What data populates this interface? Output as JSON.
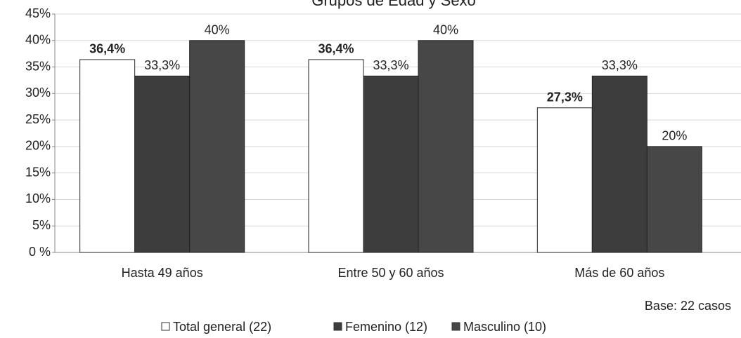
{
  "chart_data": {
    "type": "bar",
    "title": "Grupos de Edad y Sexo",
    "categories": [
      "Hasta 49 años",
      "Entre 50 y 60 años",
      "Más de 60 años"
    ],
    "series": [
      {
        "name": "Total general (22)",
        "color": "#ffffff",
        "values": [
          36.4,
          36.4,
          27.3
        ],
        "value_labels": [
          "36,4%",
          "36,4%",
          "27,3%"
        ]
      },
      {
        "name": "Femenino (12)",
        "color": "#3d3d3d",
        "values": [
          33.3,
          33.3,
          33.3
        ],
        "value_labels": [
          "33,3%",
          "33,3%",
          "33,3%"
        ]
      },
      {
        "name": "Masculino (10)",
        "color": "#474747",
        "values": [
          40,
          40,
          20
        ],
        "value_labels": [
          "40%",
          "40%",
          "20%"
        ]
      }
    ],
    "ylim": [
      0,
      45
    ],
    "yticks": [
      {
        "value": 0,
        "label": "0 %"
      },
      {
        "value": 5,
        "label": "5%"
      },
      {
        "value": 10,
        "label": "10%"
      },
      {
        "value": 15,
        "label": "15%"
      },
      {
        "value": 20,
        "label": "20%"
      },
      {
        "value": 25,
        "label": "25%"
      },
      {
        "value": 30,
        "label": "30%"
      },
      {
        "value": 35,
        "label": "35%"
      },
      {
        "value": 40,
        "label": "40%"
      },
      {
        "value": 45,
        "label": "45%"
      }
    ],
    "grid": true,
    "annotation": "Base: 22 casos",
    "legend": "bottom"
  }
}
